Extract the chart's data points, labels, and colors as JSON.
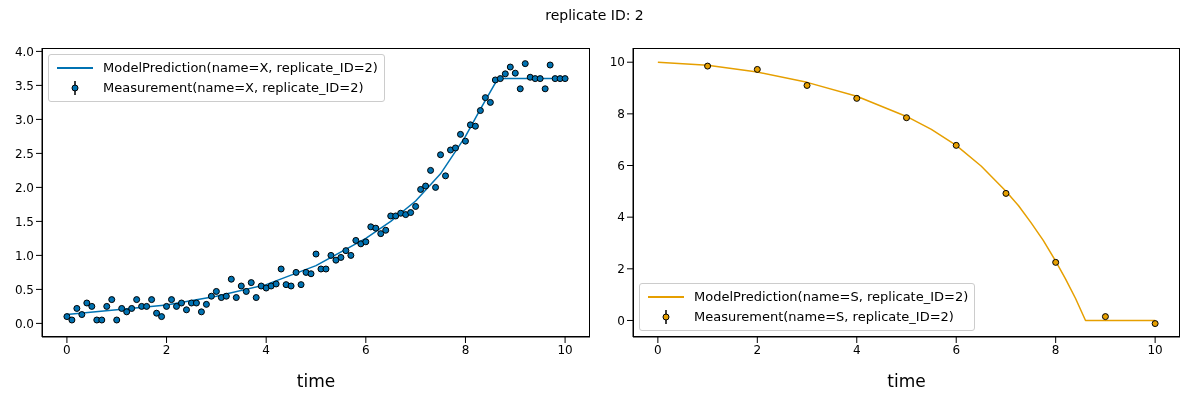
{
  "chart_data": [
    {
      "type": "scatter",
      "title": "replicate ID: 2",
      "xlabel": "time",
      "legend": "top left",
      "xlim": [
        -0.5,
        10.5
      ],
      "xticks": [
        0,
        2,
        4,
        6,
        8,
        10
      ],
      "ylim": [
        -0.2,
        4.05
      ],
      "yticks": [
        {
          "value": 0,
          "label": "0.0"
        },
        {
          "value": 0.5,
          "label": "0.5"
        },
        {
          "value": 1,
          "label": "1.0"
        },
        {
          "value": 1.5,
          "label": "1.5"
        },
        {
          "value": 2,
          "label": "2.0"
        },
        {
          "value": 2.5,
          "label": "2.5"
        },
        {
          "value": 3,
          "label": "3.0"
        },
        {
          "value": 3.5,
          "label": "3.5"
        },
        {
          "value": 4,
          "label": "4.0"
        }
      ],
      "series": [
        {
          "name": "ModelPrediction(name=X, replicate_ID=2)",
          "type": "line",
          "color": "#0072b2",
          "x": [
            0,
            1,
            2,
            3,
            4,
            5,
            6,
            6.5,
            7,
            7.5,
            8,
            8.3,
            8.65,
            10
          ],
          "values": [
            0.13,
            0.2,
            0.27,
            0.4,
            0.57,
            0.85,
            1.25,
            1.5,
            1.8,
            2.2,
            2.75,
            3.15,
            3.6,
            3.6
          ]
        },
        {
          "name": "Measurement(name=X, replicate_ID=2)",
          "marker": "circle",
          "color": "#0072b2",
          "x": [
            0,
            0.1,
            0.2,
            0.3,
            0.4,
            0.5,
            0.6,
            0.7,
            0.8,
            0.9,
            1,
            1.1,
            1.2,
            1.3,
            1.4,
            1.5,
            1.6,
            1.7,
            1.8,
            1.9,
            2,
            2.1,
            2.2,
            2.3,
            2.4,
            2.5,
            2.6,
            2.7,
            2.8,
            2.9,
            3,
            3.1,
            3.2,
            3.3,
            3.4,
            3.5,
            3.6,
            3.7,
            3.8,
            3.9,
            4,
            4.1,
            4.2,
            4.3,
            4.4,
            4.5,
            4.6,
            4.7,
            4.8,
            4.9,
            5,
            5.1,
            5.2,
            5.3,
            5.4,
            5.5,
            5.6,
            5.7,
            5.8,
            5.9,
            6,
            6.1,
            6.2,
            6.3,
            6.4,
            6.5,
            6.6,
            6.7,
            6.8,
            6.9,
            7,
            7.1,
            7.2,
            7.3,
            7.4,
            7.5,
            7.6,
            7.7,
            7.8,
            7.9,
            8,
            8.1,
            8.2,
            8.3,
            8.4,
            8.5,
            8.6,
            8.7,
            8.8,
            8.9,
            9,
            9.1,
            9.2,
            9.3,
            9.4,
            9.5,
            9.6,
            9.7,
            9.8,
            9.9,
            10
          ],
          "values": [
            0.1,
            0.05,
            0.22,
            0.13,
            0.3,
            0.25,
            0.05,
            0.05,
            0.25,
            0.35,
            0.05,
            0.22,
            0.17,
            0.22,
            0.35,
            0.25,
            0.25,
            0.35,
            0.15,
            0.1,
            0.25,
            0.35,
            0.25,
            0.3,
            0.2,
            0.3,
            0.3,
            0.17,
            0.28,
            0.4,
            0.47,
            0.38,
            0.4,
            0.65,
            0.38,
            0.55,
            0.47,
            0.6,
            0.38,
            0.55,
            0.52,
            0.55,
            0.58,
            0.8,
            0.57,
            0.55,
            0.75,
            0.57,
            0.75,
            0.73,
            1.02,
            0.8,
            0.8,
            1.0,
            0.93,
            0.97,
            1.07,
            1.0,
            1.22,
            1.17,
            1.2,
            1.42,
            1.4,
            1.32,
            1.37,
            1.58,
            1.58,
            1.62,
            1.6,
            1.63,
            1.72,
            1.97,
            2.02,
            2.25,
            2.0,
            2.48,
            2.17,
            2.55,
            2.58,
            2.78,
            2.68,
            2.92,
            2.9,
            3.13,
            3.32,
            3.25,
            3.58,
            3.6,
            3.67,
            3.77,
            3.68,
            3.45,
            3.82,
            3.62,
            3.6,
            3.6,
            3.45,
            3.8,
            3.6,
            3.6,
            3.6
          ]
        }
      ]
    },
    {
      "type": "scatter",
      "xlabel": "time",
      "legend": "bottom left",
      "xlim": [
        -0.5,
        10.5
      ],
      "xticks": [
        0,
        2,
        4,
        6,
        8,
        10
      ],
      "ylim": [
        -0.64,
        10.55
      ],
      "yticks": [
        0,
        2,
        4,
        6,
        8,
        10
      ],
      "series": [
        {
          "name": "ModelPrediction(name=S, replicate_ID=2)",
          "type": "line",
          "color": "#e69f00",
          "x": [
            0,
            1,
            2,
            3,
            4,
            5,
            5.5,
            6,
            6.5,
            7,
            7.25,
            7.5,
            7.75,
            8,
            8.2,
            8.4,
            8.6,
            10
          ],
          "values": [
            10,
            9.88,
            9.62,
            9.22,
            8.68,
            7.9,
            7.4,
            6.78,
            5.98,
            5.0,
            4.45,
            3.8,
            3.1,
            2.3,
            1.6,
            0.85,
            0,
            0
          ]
        },
        {
          "name": "Measurement(name=S, replicate_ID=2)",
          "marker": "circle",
          "color": "#e69f00",
          "x": [
            1,
            2,
            3,
            4,
            5,
            6,
            7,
            8,
            9,
            10
          ],
          "values": [
            9.85,
            9.72,
            9.1,
            8.6,
            7.85,
            6.78,
            4.92,
            2.25,
            0.15,
            -0.12
          ]
        }
      ]
    }
  ]
}
